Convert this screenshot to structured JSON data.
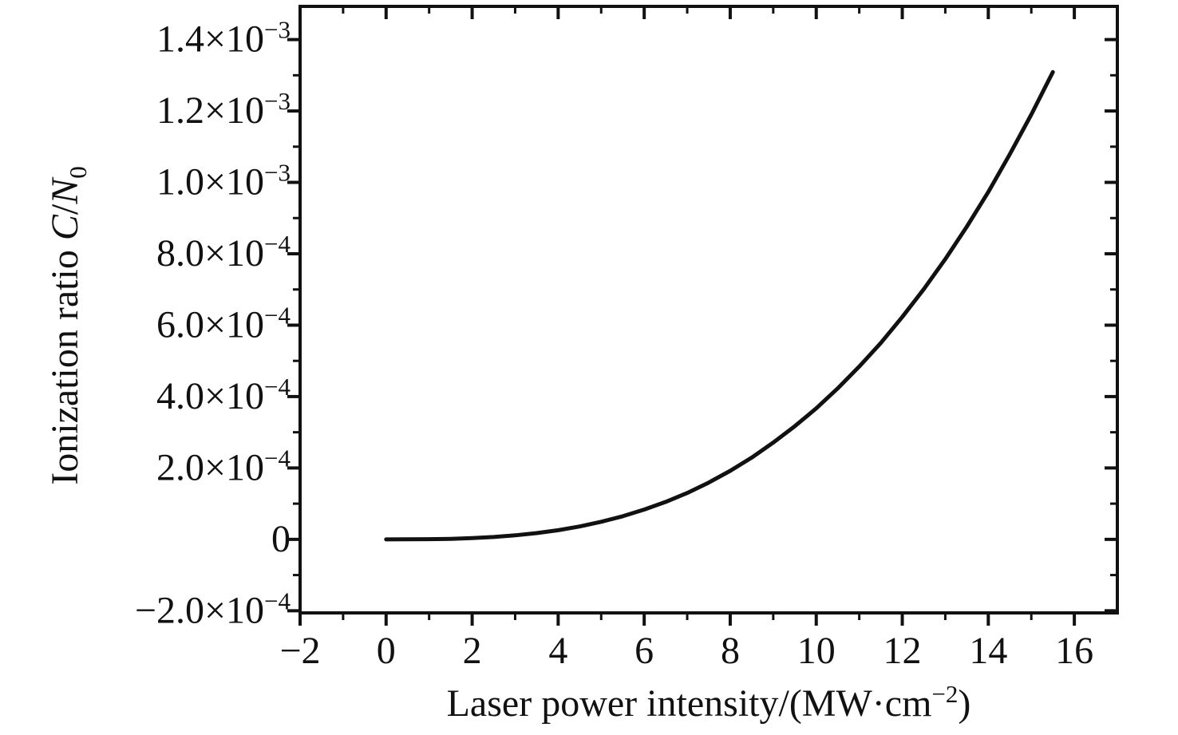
{
  "page": {
    "background": "#ffffff",
    "text_color": "#111111"
  },
  "chart_data": {
    "type": "line",
    "title": "",
    "xlabel": "Laser power intensity/(MW·cm−2)",
    "ylabel": "Ionization ratio C/N0",
    "xlabel_parts": [
      {
        "t": "Laser power intensity/(MW·cm",
        "style": "normal"
      },
      {
        "t": "−2",
        "style": "sup"
      },
      {
        "t": ")",
        "style": "normal"
      }
    ],
    "ylabel_parts": [
      {
        "t": "Ionization ratio ",
        "style": "normal"
      },
      {
        "t": "C",
        "style": "italic"
      },
      {
        "t": "/",
        "style": "normal"
      },
      {
        "t": "N",
        "style": "italic"
      },
      {
        "t": "0",
        "style": "sub"
      }
    ],
    "grid": false,
    "legend": null,
    "axis_color": "#111111",
    "curve_color": "#111111",
    "x_axis": {
      "min": -2,
      "max": 17,
      "major_ticks": [
        {
          "v": -2,
          "label": "−2"
        },
        {
          "v": 0,
          "label": "0"
        },
        {
          "v": 2,
          "label": "2"
        },
        {
          "v": 4,
          "label": "4"
        },
        {
          "v": 6,
          "label": "6"
        },
        {
          "v": 8,
          "label": "8"
        },
        {
          "v": 10,
          "label": "10"
        },
        {
          "v": 12,
          "label": "12"
        },
        {
          "v": 14,
          "label": "14"
        },
        {
          "v": 16,
          "label": "16"
        }
      ],
      "minor_ticks": [
        -1,
        1,
        3,
        5,
        7,
        9,
        11,
        13,
        15
      ]
    },
    "y_axis": {
      "min": -0.000206,
      "max": 0.001493,
      "major_ticks": [
        {
          "v": 0.0014,
          "mant": "1.4×10",
          "exp": "−3"
        },
        {
          "v": 0.0012,
          "mant": "1.2×10",
          "exp": "−3"
        },
        {
          "v": 0.001,
          "mant": "1.0×10",
          "exp": "−3"
        },
        {
          "v": 0.0008,
          "mant": "8.0×10",
          "exp": "−4"
        },
        {
          "v": 0.0006,
          "mant": "6.0×10",
          "exp": "−4"
        },
        {
          "v": 0.0004,
          "mant": "4.0×10",
          "exp": "−4"
        },
        {
          "v": 0.0002,
          "mant": "2.0×10",
          "exp": "−4"
        },
        {
          "v": 0,
          "mant": "0",
          "exp": ""
        },
        {
          "v": -0.0002,
          "mant": "−2.0×10",
          "exp": "−4"
        }
      ],
      "minor_ticks": [
        -0.0001,
        0.0001,
        0.0003,
        0.0005,
        0.0007,
        0.0009,
        0.0011,
        0.0013
      ]
    },
    "series": [
      {
        "name": "ionization-ratio-curve",
        "x": [
          0,
          0.5,
          1,
          1.5,
          2,
          2.5,
          3,
          3.5,
          4,
          4.5,
          5,
          5.5,
          6,
          6.5,
          7,
          7.5,
          8,
          8.5,
          9,
          9.5,
          10,
          10.5,
          11,
          11.5,
          12,
          12.5,
          13,
          13.5,
          14,
          14.5,
          15,
          15.5
        ],
        "y": [
          0,
          6.2e-08,
          4.6e-07,
          1.5e-06,
          3.45e-06,
          6.6e-06,
          1.12e-05,
          1.75e-05,
          2.57e-05,
          3.62e-05,
          4.92e-05,
          6.48e-05,
          8.34e-05,
          0.000105,
          0.00013,
          0.000159,
          0.000192,
          0.000229,
          0.000271,
          0.000317,
          0.000367,
          0.000423,
          0.000484,
          0.00055,
          0.000623,
          0.000701,
          0.000785,
          0.000876,
          0.000973,
          0.001079,
          0.00119,
          0.001309
        ]
      }
    ]
  }
}
